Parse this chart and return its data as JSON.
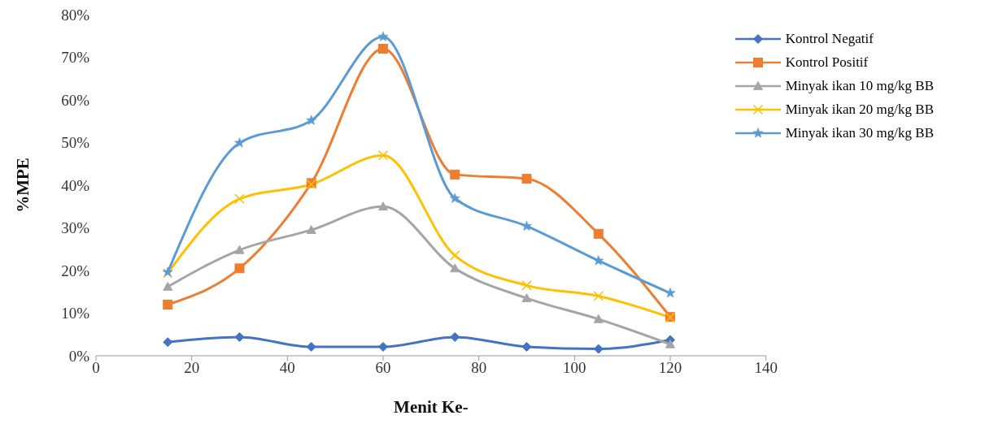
{
  "chart_data": {
    "type": "line",
    "xlabel": "Menit Ke-",
    "ylabel": "%MPE",
    "x": [
      15,
      30,
      45,
      60,
      75,
      90,
      105,
      120
    ],
    "series": [
      {
        "name": "Kontrol Negatif",
        "color": "#4472c4",
        "marker": "diamond",
        "values": [
          3.2,
          4.4,
          2.1,
          2.1,
          4.4,
          2.1,
          1.6,
          3.7
        ]
      },
      {
        "name": "Kontrol Positif",
        "color": "#ed7d31",
        "marker": "square",
        "values": [
          12,
          20.5,
          40.5,
          72,
          42.5,
          41.5,
          28.6,
          9.1
        ]
      },
      {
        "name": "Minyak ikan 10 mg/kg BB",
        "color": "#a5a5a5",
        "marker": "triangle",
        "values": [
          16.2,
          24.8,
          29.5,
          35,
          20.5,
          13.5,
          8.6,
          2.7
        ]
      },
      {
        "name": "Minyak ikan 20 mg/kg BB",
        "color": "#ffc000",
        "marker": "cross",
        "values": [
          19.4,
          36.8,
          40.2,
          47,
          23.5,
          16.5,
          14,
          9
        ]
      },
      {
        "name": "Minyak ikan 30 mg/kg BB",
        "color": "#5b9bd5",
        "marker": "star",
        "values": [
          19.6,
          49.9,
          55.2,
          74.8,
          36.9,
          30.4,
          22.3,
          14.7
        ]
      }
    ],
    "xlim": [
      0,
      140
    ],
    "xticks": [
      0,
      20,
      40,
      60,
      80,
      100,
      120,
      140
    ],
    "ylim": [
      0,
      80
    ],
    "yticks": [
      {
        "value": 0,
        "label": "0%"
      },
      {
        "value": 10,
        "label": "10%"
      },
      {
        "value": 20,
        "label": "20%"
      },
      {
        "value": 30,
        "label": "30%"
      },
      {
        "value": 40,
        "label": "40%"
      },
      {
        "value": 50,
        "label": "50%"
      },
      {
        "value": 60,
        "label": "60%"
      },
      {
        "value": 70,
        "label": "70%"
      },
      {
        "value": 80,
        "label": "80%"
      }
    ],
    "grid": false,
    "legend": "top right",
    "line_style": "solid"
  }
}
